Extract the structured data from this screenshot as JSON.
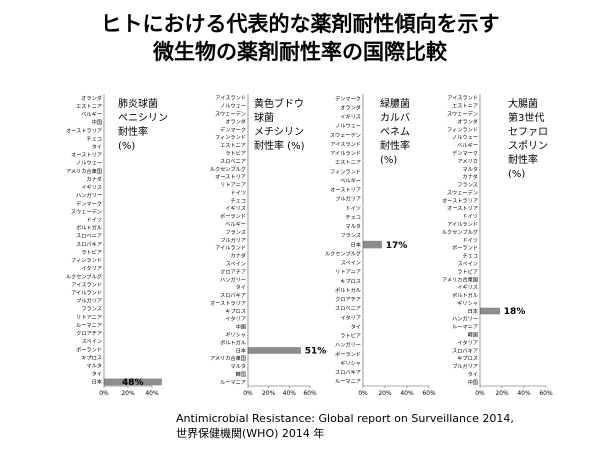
{
  "title_line1": "ヒトにおける代表的な薬剤耐性傾向を示す",
  "title_line2": "微生物の薬剤耐性率の国際比較",
  "footer_line1": "Antimicrobial Resistance: Global report on Surveillance 2014,",
  "footer_line2": "世界保健機関(WHO) 2014  年",
  "colors": {
    "bar_fill": "#dcdcdc",
    "japan_bar": "#8c8c8c",
    "axis": "#555555"
  },
  "chart_data": [
    {
      "type": "bar",
      "orientation": "horizontal",
      "label": "肺炎球菌\nペニシリン\n耐性率\n(%)",
      "xlim": [
        0,
        40
      ],
      "xticks": [
        0,
        20,
        40
      ],
      "tick_labels": [
        "0%",
        "20%",
        "40%"
      ],
      "grid": false,
      "categories": [
        "オランダ",
        "エストニア",
        "ベルギー",
        "中国",
        "オーストラリア",
        "チェコ",
        "タイ",
        "オーストリア",
        "ノルウェー",
        "アメリカ合衆国",
        "カナダ",
        "イギリス",
        "ハンガリー",
        "デンマーク",
        "スウェーデン",
        "ドイツ",
        "ポルトガル",
        "スロベニア",
        "スロバキア",
        "ラトビア",
        "フィンランド",
        "イタリア",
        "ルクセンブルグ",
        "アイスランド",
        "アイルランド",
        "ブルガリア",
        "フランス",
        "リトアニア",
        "ルーマニア",
        "クロアチア",
        "スペイン",
        "ポーランド",
        "キプロス",
        "マルタ",
        "タイ",
        "日本"
      ],
      "values": [
        null,
        null,
        null,
        null,
        null,
        null,
        null,
        null,
        null,
        null,
        null,
        null,
        null,
        null,
        null,
        null,
        null,
        null,
        null,
        null,
        null,
        null,
        null,
        null,
        null,
        null,
        null,
        null,
        null,
        null,
        null,
        null,
        null,
        null,
        null,
        48
      ],
      "highlight": "日本",
      "data_labels": [
        "48%"
      ]
    },
    {
      "type": "bar",
      "orientation": "horizontal",
      "label": "黄色ブドウ\n球菌\nメチシリン\n耐性率 (%)",
      "xlim": [
        0,
        60
      ],
      "xticks": [
        0,
        20,
        40,
        60
      ],
      "tick_labels": [
        "0%",
        "20%",
        "40%",
        "60%"
      ],
      "grid": false,
      "categories": [
        "アイスランド",
        "ノルウェー",
        "スウェーデン",
        "オランダ",
        "デンマーク",
        "フィンランド",
        "エストニア",
        "ラトビア",
        "スロベニア",
        "ルクセンブルグ",
        "オーストリア",
        "リトアニア",
        "ドイツ",
        "チェコ",
        "イギリス",
        "ポーランド",
        "ベルギー",
        "フランス",
        "ブルガリア",
        "アイルランド",
        "カナダ",
        "スペイン",
        "クロアチア",
        "ハンガリー",
        "タイ",
        "スロバキア",
        "オーストラリア",
        "キプロス",
        "イタリア",
        "中国",
        "ギリシャ",
        "ポルトガル",
        "日本",
        "アメリカ合衆国",
        "マルタ",
        "韓国",
        "ルーマニア"
      ],
      "values": [
        null,
        null,
        null,
        null,
        null,
        null,
        null,
        null,
        null,
        null,
        null,
        null,
        null,
        null,
        null,
        null,
        null,
        null,
        null,
        null,
        null,
        null,
        null,
        null,
        null,
        null,
        null,
        null,
        null,
        null,
        null,
        null,
        51,
        null,
        null,
        null,
        null
      ],
      "highlight": "日本",
      "data_labels": [
        "51%"
      ]
    },
    {
      "type": "bar",
      "orientation": "horizontal",
      "label": "緑膿菌\nカルバ\nペネム\n耐性率\n(%)",
      "xlim": [
        0,
        60
      ],
      "xticks": [
        0,
        20,
        40,
        60
      ],
      "tick_labels": [
        "0%",
        "20%",
        "40%",
        "60%"
      ],
      "grid": false,
      "categories": [
        "デンマーク",
        "オランダ",
        "イギリス",
        "ノルウェー",
        "スウェーデン",
        "アイスランド",
        "アイルランド",
        "エストニア",
        "フィンランド",
        "ベルギー",
        "オーストリア",
        "ブルガリア",
        "ドイツ",
        "チェコ",
        "マルタ",
        "フランス",
        "日本",
        "ルクセンブルグ",
        "スペイン",
        "リトアニア",
        "キプロス",
        "ポルトガル",
        "クロアチア",
        "スロベニア",
        "イタリア",
        "タイ",
        "ラトビア",
        "ハンガリー",
        "ポーランド",
        "ギリシャ",
        "スロバキア",
        "ルーマニア"
      ],
      "values": [
        null,
        null,
        null,
        null,
        null,
        null,
        null,
        null,
        null,
        null,
        null,
        null,
        null,
        null,
        null,
        null,
        17,
        null,
        null,
        null,
        null,
        null,
        null,
        null,
        null,
        null,
        null,
        null,
        null,
        null,
        null,
        null
      ],
      "highlight": "日本",
      "data_labels": [
        "17%"
      ]
    },
    {
      "type": "bar",
      "orientation": "horizontal",
      "label": "大腸菌\n第3世代\nセファロ\nスポリン\n耐性率\n(%)",
      "xlim": [
        0,
        60
      ],
      "xticks": [
        0,
        20,
        40,
        60
      ],
      "tick_labels": [
        "0%",
        "20%",
        "40%",
        "60%"
      ],
      "grid": false,
      "categories": [
        "アイスランド",
        "エストニア",
        "スウェーデン",
        "オランダ",
        "フィンランド",
        "ノルウェー",
        "ベルギー",
        "デンマーク",
        "アメリカ",
        "マルタ",
        "カナダ",
        "フランス",
        "スウェーデン",
        "オーストラリア",
        "オーストリア",
        "ドイツ",
        "アイルランド",
        "ルクセンブルグ",
        "ドイツ",
        "ポーランド",
        "チェコ",
        "スペイン",
        "ラトビア",
        "アメリカ合衆国",
        "イギリス",
        "ポルトガル",
        "ギリシャ",
        "日本",
        "ハンガリー",
        "ルーマニア",
        "韓国",
        "イタリア",
        "スロバキア",
        "キプロス",
        "ブルガリア",
        "タイ",
        "中国"
      ],
      "values": [
        null,
        null,
        null,
        null,
        null,
        null,
        null,
        null,
        null,
        null,
        null,
        null,
        null,
        null,
        null,
        null,
        null,
        null,
        null,
        null,
        null,
        null,
        null,
        null,
        null,
        null,
        null,
        18,
        null,
        null,
        null,
        null,
        null,
        null,
        null,
        null,
        null
      ],
      "highlight": "日本",
      "data_labels": [
        "18%"
      ]
    }
  ]
}
